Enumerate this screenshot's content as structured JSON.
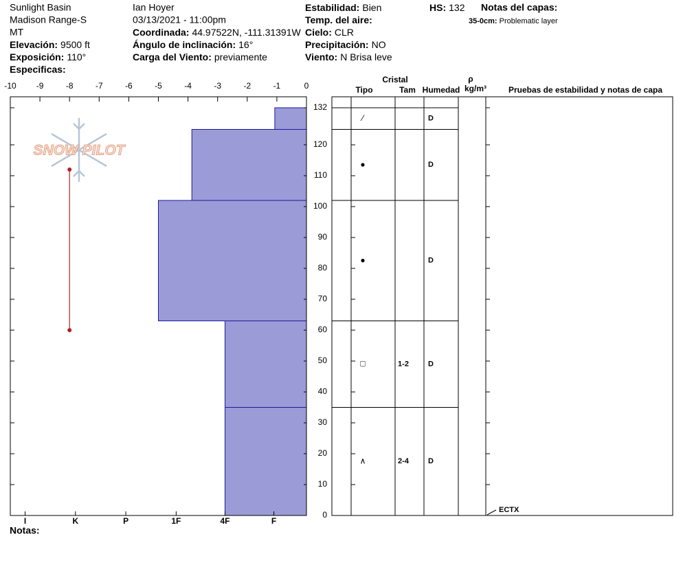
{
  "header": {
    "location": [
      "Sunlight Basin",
      "Madison Range-S",
      "MT"
    ],
    "observer": "Ian Hoyer",
    "datetime": "03/13/2021 - 11:00pm",
    "fields": [
      {
        "label": "Elevación:",
        "value": "9500 ft"
      },
      {
        "label": "Exposición:",
        "value": "110°"
      },
      {
        "label": "Especificas:"
      },
      {
        "label": "Coordinada:",
        "value": "44.97522N, -111.31391W"
      },
      {
        "label": "Ángulo de inclinación:",
        "value": "16°"
      },
      {
        "label": "Carga del Viento:",
        "value": "previamente"
      },
      {
        "label": "Estabilidad:",
        "value": "Bien"
      },
      {
        "label": "Temp. del aire:"
      },
      {
        "label": "Cielo:",
        "value": "CLR"
      },
      {
        "label": "Precipitación:",
        "value": "NO"
      },
      {
        "label": "Viento:",
        "value": "N Brisa leve"
      },
      {
        "label": "HS:",
        "value": 132
      }
    ],
    "layer_notes_title": "Notas del capas:",
    "layer_notes": [
      {
        "range": "35-0cm:",
        "text": "Problematic layer"
      }
    ]
  },
  "logo": "SNOW PILOT",
  "notes_label": "Notas:",
  "columns": {
    "crystal": "Cristal",
    "type": "Tipo",
    "size": "Tam",
    "moisture": "Humedad",
    "density": "ρ",
    "density_unit": "kg/m³",
    "tests": "Pruebas de estabilidad y notas de capa"
  },
  "chart_data": {
    "type": "snow-profile",
    "xlim": [
      -10,
      0
    ],
    "xticks": [
      -10,
      -9,
      -8,
      -7,
      -6,
      -5,
      -4,
      -3,
      -2,
      -1,
      0
    ],
    "hardness_ticks": [
      {
        "value": -9.5,
        "label": "I"
      },
      {
        "value": -7.8,
        "label": "K"
      },
      {
        "value": -6.1,
        "label": "P"
      },
      {
        "value": -4.4,
        "label": "1F"
      },
      {
        "value": -2.75,
        "label": "4F"
      },
      {
        "value": -1.1,
        "label": "F"
      }
    ],
    "ylim": [
      0,
      132
    ],
    "yticks": [
      0,
      10,
      20,
      30,
      40,
      50,
      60,
      70,
      80,
      90,
      100,
      110,
      120,
      132
    ],
    "color": "#9b9bd7",
    "layers": {
      "top": [
        132,
        125,
        102,
        63,
        35
      ],
      "bottom": [
        125,
        102,
        63,
        35,
        0
      ],
      "hardness": [
        -1.07,
        -3.87,
        -5,
        -2.75,
        -2.75
      ],
      "crystal": [
        "⁄",
        "●",
        "●",
        "□",
        "∧"
      ],
      "size": [
        null,
        null,
        null,
        "1-2",
        "2-4"
      ],
      "moisture": [
        "D",
        "D",
        "D",
        "D",
        "D"
      ]
    },
    "test_line": {
      "x": -8,
      "y": [
        112,
        60
      ],
      "color": "#b22222"
    },
    "tests": [
      {
        "height": 0,
        "label": "ECTX"
      }
    ]
  }
}
